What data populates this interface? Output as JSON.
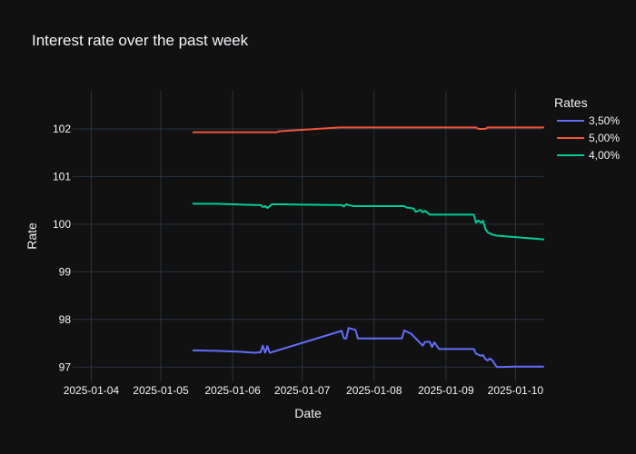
{
  "chart_data": {
    "type": "line",
    "title": "Interest rate over the past week",
    "xlabel": "Date",
    "ylabel": "Rate",
    "x_axis_type": "date",
    "xlim": [
      "2025-03-24",
      "2025-10-13"
    ],
    "ylim": [
      96.7,
      102.8
    ],
    "x_tick_labels": [
      "2025-01-04",
      "2025-01-05",
      "2025-01-06",
      "2025-01-07",
      "2025-01-08",
      "2025-01-09",
      "2025-01-10"
    ],
    "x_tick_dates": [
      "2025-04-01",
      "2025-05-01",
      "2025-06-01",
      "2025-07-01",
      "2025-08-01",
      "2025-09-01",
      "2025-10-01"
    ],
    "y_ticks": [
      97,
      98,
      99,
      100,
      101,
      102
    ],
    "grid": true,
    "legend": {
      "title": "Rates",
      "position": "top-right"
    },
    "series": [
      {
        "name": "3,50%",
        "color": "#636efa",
        "points": [
          [
            "2025-05-15",
            97.35
          ],
          [
            "2025-05-25",
            97.34
          ],
          [
            "2025-06-05",
            97.32
          ],
          [
            "2025-06-10",
            97.3
          ],
          [
            "2025-06-13",
            97.31
          ],
          [
            "2025-06-14",
            97.45
          ],
          [
            "2025-06-15",
            97.3
          ],
          [
            "2025-06-16",
            97.44
          ],
          [
            "2025-06-17",
            97.3
          ],
          [
            "2025-07-18",
            97.76
          ],
          [
            "2025-07-19",
            97.6
          ],
          [
            "2025-07-20",
            97.6
          ],
          [
            "2025-07-21",
            97.82
          ],
          [
            "2025-07-24",
            97.78
          ],
          [
            "2025-07-25",
            97.6
          ],
          [
            "2025-08-13",
            97.6
          ],
          [
            "2025-08-14",
            97.77
          ],
          [
            "2025-08-17",
            97.7
          ],
          [
            "2025-08-19",
            97.6
          ],
          [
            "2025-08-21",
            97.5
          ],
          [
            "2025-08-22",
            97.45
          ],
          [
            "2025-08-23",
            97.53
          ],
          [
            "2025-08-25",
            97.53
          ],
          [
            "2025-08-26",
            97.42
          ],
          [
            "2025-08-27",
            97.52
          ],
          [
            "2025-08-28",
            97.45
          ],
          [
            "2025-08-29",
            97.38
          ],
          [
            "2025-09-05",
            97.38
          ],
          [
            "2025-09-13",
            97.38
          ],
          [
            "2025-09-14",
            97.28
          ],
          [
            "2025-09-16",
            97.24
          ],
          [
            "2025-09-17",
            97.25
          ],
          [
            "2025-09-18",
            97.17
          ],
          [
            "2025-09-19",
            97.14
          ],
          [
            "2025-09-20",
            97.18
          ],
          [
            "2025-09-21",
            97.14
          ],
          [
            "2025-09-23",
            97.0
          ],
          [
            "2025-10-01",
            97.01
          ],
          [
            "2025-10-13",
            97.01
          ]
        ]
      },
      {
        "name": "5,00%",
        "color": "#ef553b",
        "points": [
          [
            "2025-05-15",
            101.93
          ],
          [
            "2025-06-20",
            101.93
          ],
          [
            "2025-06-21",
            101.95
          ],
          [
            "2025-07-17",
            102.03
          ],
          [
            "2025-09-14",
            102.03
          ],
          [
            "2025-09-15",
            102.0
          ],
          [
            "2025-09-18",
            102.0
          ],
          [
            "2025-09-19",
            102.03
          ],
          [
            "2025-10-13",
            102.03
          ]
        ]
      },
      {
        "name": "4,00%",
        "color": "#00cc96",
        "points": [
          [
            "2025-05-15",
            100.43
          ],
          [
            "2025-05-25",
            100.43
          ],
          [
            "2025-06-05",
            100.41
          ],
          [
            "2025-06-13",
            100.4
          ],
          [
            "2025-06-14",
            100.36
          ],
          [
            "2025-06-15",
            100.38
          ],
          [
            "2025-06-16",
            100.34
          ],
          [
            "2025-06-17",
            100.38
          ],
          [
            "2025-06-18",
            100.42
          ],
          [
            "2025-07-01",
            100.41
          ],
          [
            "2025-07-18",
            100.4
          ],
          [
            "2025-07-19",
            100.37
          ],
          [
            "2025-07-20",
            100.42
          ],
          [
            "2025-07-21",
            100.4
          ],
          [
            "2025-07-23",
            100.38
          ],
          [
            "2025-08-14",
            100.38
          ],
          [
            "2025-08-15",
            100.35
          ],
          [
            "2025-08-18",
            100.33
          ],
          [
            "2025-08-19",
            100.26
          ],
          [
            "2025-08-21",
            100.3
          ],
          [
            "2025-08-22",
            100.25
          ],
          [
            "2025-08-23",
            100.28
          ],
          [
            "2025-08-25",
            100.2
          ],
          [
            "2025-09-13",
            100.2
          ],
          [
            "2025-09-14",
            100.03
          ],
          [
            "2025-09-15",
            100.08
          ],
          [
            "2025-09-16",
            100.03
          ],
          [
            "2025-09-17",
            100.07
          ],
          [
            "2025-09-18",
            99.9
          ],
          [
            "2025-09-19",
            99.83
          ],
          [
            "2025-09-21",
            99.78
          ],
          [
            "2025-09-23",
            99.76
          ],
          [
            "2025-10-13",
            99.68
          ]
        ]
      }
    ]
  }
}
